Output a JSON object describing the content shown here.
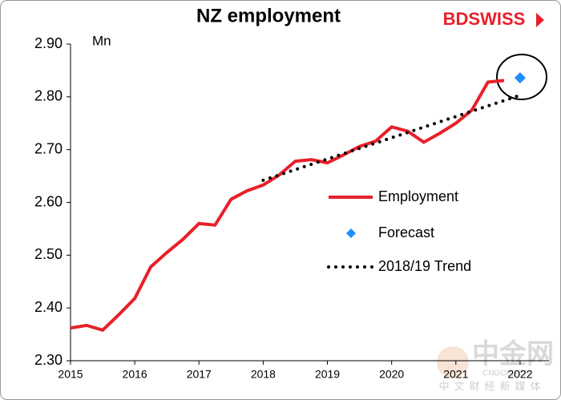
{
  "chart_data": {
    "type": "line",
    "title": "NZ employment",
    "y_label": "Mn",
    "brand": "BDSWISS",
    "watermark": {
      "name": "中金网",
      "site": "CNGOLD.CN",
      "tagline": "中文财经新媒体"
    },
    "xlim": [
      2015,
      2022.45
    ],
    "xticks": [
      2015,
      2016,
      2017,
      2018,
      2019,
      2020,
      2021,
      2022
    ],
    "ylim": [
      2.3,
      2.9
    ],
    "yticks": [
      {
        "value": 2.3,
        "label": "2.30"
      },
      {
        "value": 2.4,
        "label": "2.40"
      },
      {
        "value": 2.5,
        "label": "2.50"
      },
      {
        "value": 2.6,
        "label": "2.60"
      },
      {
        "value": 2.7,
        "label": "2.70"
      },
      {
        "value": 2.8,
        "label": "2.80"
      },
      {
        "value": 2.9,
        "label": "2.90"
      }
    ],
    "grid": false,
    "series": [
      {
        "name": "Employment",
        "style": "line",
        "color": "#e8202a",
        "x": [
          2015,
          2015.25,
          2015.5,
          2015.75,
          2016,
          2016.25,
          2016.5,
          2016.75,
          2017,
          2017.25,
          2017.5,
          2017.75,
          2018,
          2018.25,
          2018.5,
          2018.75,
          2019,
          2019.25,
          2019.5,
          2019.75,
          2020,
          2020.25,
          2020.5,
          2020.75,
          2021,
          2021.25,
          2021.5,
          2021.75
        ],
        "values": [
          2.362,
          2.367,
          2.358,
          2.387,
          2.418,
          2.478,
          2.505,
          2.53,
          2.56,
          2.557,
          2.606,
          2.622,
          2.633,
          2.652,
          2.678,
          2.681,
          2.675,
          2.69,
          2.706,
          2.716,
          2.743,
          2.735,
          2.714,
          2.731,
          2.75,
          2.775,
          2.828,
          2.831
        ]
      },
      {
        "name": "Forecast",
        "style": "marker",
        "color": "#1e8fff",
        "x": [
          2022
        ],
        "values": [
          2.836
        ]
      },
      {
        "name": "2018/19 Trend",
        "style": "dotted",
        "color": "#000000",
        "x": [
          2018,
          2022
        ],
        "values": [
          2.642,
          2.803
        ]
      }
    ]
  }
}
